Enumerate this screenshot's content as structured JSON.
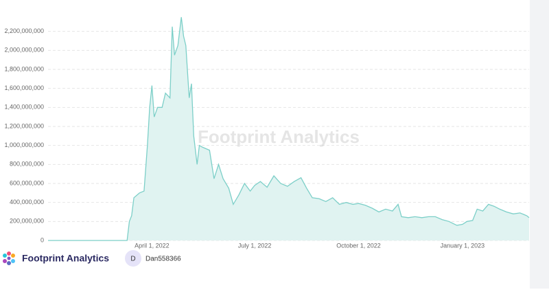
{
  "chart_data": {
    "type": "area",
    "x": [
      "2021-12-30",
      "2022-03-10",
      "2022-03-12",
      "2022-03-14",
      "2022-03-16",
      "2022-03-19",
      "2022-03-21",
      "2022-03-25",
      "2022-03-28",
      "2022-03-30",
      "2022-04-01",
      "2022-04-03",
      "2022-04-06",
      "2022-04-10",
      "2022-04-13",
      "2022-04-17",
      "2022-04-19",
      "2022-04-21",
      "2022-04-24",
      "2022-04-27",
      "2022-04-29",
      "2022-05-01",
      "2022-05-04",
      "2022-05-06",
      "2022-05-08",
      "2022-05-11",
      "2022-05-13",
      "2022-05-16",
      "2022-05-22",
      "2022-05-26",
      "2022-05-30",
      "2022-06-03",
      "2022-06-08",
      "2022-06-12",
      "2022-06-17",
      "2022-06-22",
      "2022-06-27",
      "2022-07-01",
      "2022-07-06",
      "2022-07-12",
      "2022-07-18",
      "2022-07-24",
      "2022-07-30",
      "2022-08-05",
      "2022-08-11",
      "2022-08-16",
      "2022-08-21",
      "2022-08-27",
      "2022-09-02",
      "2022-09-08",
      "2022-09-14",
      "2022-09-20",
      "2022-09-26",
      "2022-10-01",
      "2022-10-07",
      "2022-10-13",
      "2022-10-19",
      "2022-10-25",
      "2022-10-31",
      "2022-11-05",
      "2022-11-08",
      "2022-11-14",
      "2022-11-20",
      "2022-11-26",
      "2022-12-02",
      "2022-12-08",
      "2022-12-14",
      "2022-12-20",
      "2022-12-27",
      "2023-01-01",
      "2023-01-05",
      "2023-01-10",
      "2023-01-14",
      "2023-01-19",
      "2023-01-24",
      "2023-01-29",
      "2023-02-03",
      "2023-02-09",
      "2023-02-15",
      "2023-02-21",
      "2023-02-27",
      "2023-03-01"
    ],
    "values": [
      0,
      0,
      200000000,
      260000000,
      450000000,
      480000000,
      500000000,
      520000000,
      1000000000,
      1400000000,
      1630000000,
      1300000000,
      1400000000,
      1400000000,
      1550000000,
      1500000000,
      2250000000,
      1950000000,
      2050000000,
      2350000000,
      2150000000,
      2050000000,
      1500000000,
      1650000000,
      1100000000,
      800000000,
      1000000000,
      980000000,
      950000000,
      650000000,
      800000000,
      650000000,
      550000000,
      380000000,
      480000000,
      600000000,
      520000000,
      580000000,
      620000000,
      560000000,
      680000000,
      600000000,
      570000000,
      620000000,
      660000000,
      550000000,
      450000000,
      440000000,
      410000000,
      450000000,
      380000000,
      400000000,
      380000000,
      390000000,
      370000000,
      340000000,
      300000000,
      330000000,
      310000000,
      380000000,
      250000000,
      240000000,
      250000000,
      240000000,
      250000000,
      250000000,
      220000000,
      200000000,
      160000000,
      170000000,
      200000000,
      210000000,
      330000000,
      310000000,
      380000000,
      360000000,
      330000000,
      300000000,
      280000000,
      290000000,
      260000000,
      240000000
    ],
    "color": "#7ccfc8",
    "fill": "#e0f3f1",
    "xlim": [
      "2021-12-30",
      "2023-03-01"
    ],
    "xticks": [
      {
        "value": "2022-04-01",
        "label": "April 1, 2022"
      },
      {
        "value": "2022-07-01",
        "label": "July 1, 2022"
      },
      {
        "value": "2022-10-01",
        "label": "October 1, 2022"
      },
      {
        "value": "2023-01-01",
        "label": "January 1, 2023"
      }
    ],
    "ylim": [
      0,
      2400000000
    ],
    "yticks": [
      0,
      {
        "value": 200000000,
        "label": "200,000,000"
      },
      {
        "value": 400000000,
        "label": "400,000,000"
      },
      {
        "value": 600000000,
        "label": "600,000,000"
      },
      {
        "value": 800000000,
        "label": "800,000,000"
      },
      {
        "value": 1000000000,
        "label": "1,000,000,000"
      },
      {
        "value": 1200000000,
        "label": "1,200,000,000"
      },
      {
        "value": 1400000000,
        "label": "1,400,000,000"
      },
      {
        "value": 1600000000,
        "label": "1,600,000,000"
      },
      {
        "value": 1800000000,
        "label": "1,800,000,000"
      },
      {
        "value": 2000000000,
        "label": "2,000,000,000"
      },
      {
        "value": 2200000000,
        "label": "2,200,000,000"
      }
    ],
    "grid": true,
    "watermark": "Footprint Analytics"
  },
  "footer": {
    "brand": "Footprint Analytics",
    "avatar": "D",
    "user": "Dan558366"
  }
}
